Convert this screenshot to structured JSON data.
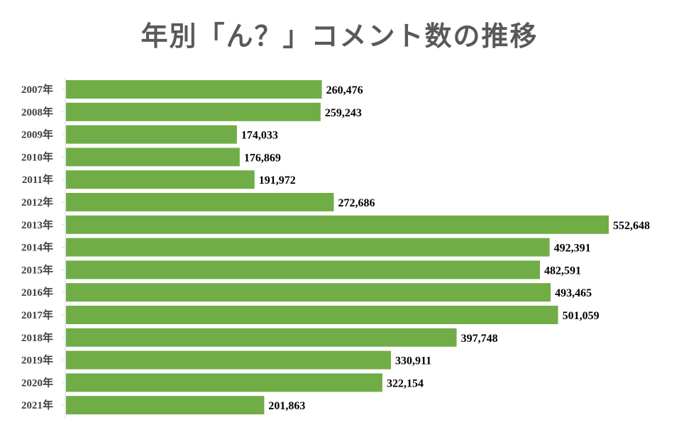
{
  "chart_data": {
    "type": "bar",
    "orientation": "horizontal",
    "title": "年別「ん？」コメント数の推移",
    "xlabel": "",
    "ylabel": "",
    "categories": [
      "2007年",
      "2008年",
      "2009年",
      "2010年",
      "2011年",
      "2012年",
      "2013年",
      "2014年",
      "2015年",
      "2016年",
      "2017年",
      "2018年",
      "2019年",
      "2020年",
      "2021年"
    ],
    "values": [
      260476,
      259243,
      174033,
      176869,
      191972,
      272686,
      552648,
      492391,
      482591,
      493465,
      501059,
      397748,
      330911,
      322154,
      201863
    ],
    "value_labels": [
      "260,476",
      "259,243",
      "174,033",
      "176,869",
      "191,972",
      "272,686",
      "552,648",
      "492,391",
      "482,591",
      "493,465",
      "501,059",
      "397,748",
      "330,911",
      "322,154",
      "201,863"
    ],
    "xlim": [
      0,
      552648
    ],
    "bar_color": "#70AD47",
    "grid": false,
    "legend": "none"
  }
}
